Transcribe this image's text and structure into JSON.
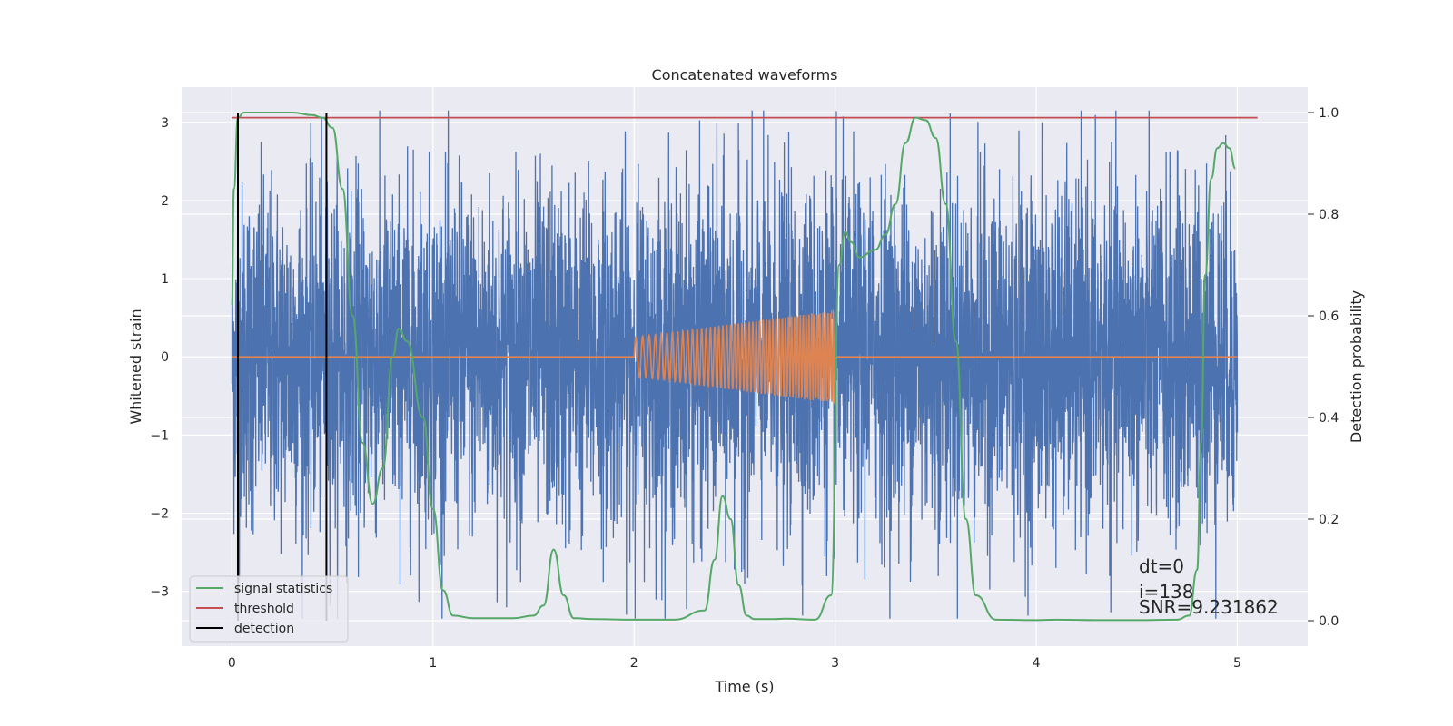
{
  "chart_data": {
    "type": "line",
    "title": "Concatenated waveforms",
    "xlabel": "Time (s)",
    "ylabel": "Whitened strain",
    "y2label": "Detection probability",
    "xlim": [
      -0.25,
      5.35
    ],
    "ylim": [
      -3.7,
      3.45
    ],
    "y2lim": [
      -0.05,
      1.05
    ],
    "xticks": [
      0,
      1,
      2,
      3,
      4,
      5
    ],
    "xtick_labels": [
      "0",
      "1",
      "2",
      "3",
      "4",
      "5"
    ],
    "yticks": [
      -3,
      -2,
      -1,
      0,
      1,
      2,
      3
    ],
    "ytick_labels": [
      "−3",
      "−2",
      "−1",
      "0",
      "1",
      "2",
      "3"
    ],
    "y2ticks": [
      0.0,
      0.2,
      0.4,
      0.6,
      0.8,
      1.0
    ],
    "y2tick_labels": [
      "0.0",
      "0.2",
      "0.4",
      "0.6",
      "0.8",
      "1.0"
    ],
    "grid": true,
    "legend_position": "lower-left",
    "legend": [
      {
        "label": "signal statistics",
        "color": "#55a868"
      },
      {
        "label": "threshold",
        "color": "#c44e52"
      },
      {
        "label": "detection",
        "color": "#000000"
      }
    ],
    "annotation_lines": [
      "dt=0",
      "i=138",
      "SNR=9.231862"
    ],
    "series": [
      {
        "role": "strain noise",
        "color": "#4c72b0",
        "axis": "left",
        "x_range": [
          0,
          5
        ],
        "envelope_typical": 2.0,
        "envelope_peak": 3.15,
        "min_visible": -3.35
      },
      {
        "role": "injected chirp",
        "color": "#dd8452",
        "axis": "left",
        "x_range": [
          0,
          5
        ],
        "chirp_start": 2.0,
        "chirp_end": 3.0,
        "amplitude_start": 0.25,
        "amplitude_end": 0.6
      },
      {
        "name": "signal statistics",
        "color": "#55a868",
        "axis": "right",
        "x": [
          0.0,
          0.01,
          0.03,
          0.06,
          0.1,
          0.2,
          0.3,
          0.4,
          0.45,
          0.5,
          0.55,
          0.6,
          0.65,
          0.7,
          0.75,
          0.8,
          0.83,
          0.87,
          0.95,
          1.0,
          1.05,
          1.1,
          1.2,
          1.4,
          1.5,
          1.55,
          1.6,
          1.65,
          1.7,
          1.8,
          2.0,
          2.2,
          2.35,
          2.4,
          2.44,
          2.48,
          2.52,
          2.56,
          2.6,
          2.7,
          2.75,
          2.9,
          2.98,
          3.02,
          3.05,
          3.08,
          3.12,
          3.2,
          3.25,
          3.3,
          3.35,
          3.4,
          3.45,
          3.5,
          3.55,
          3.6,
          3.65,
          3.7,
          3.8,
          4.0,
          4.1,
          4.3,
          4.5,
          4.7,
          4.76,
          4.8,
          4.82,
          4.84,
          4.87,
          4.9,
          4.93,
          4.96,
          4.99
        ],
        "y": [
          0.62,
          0.85,
          0.99,
          1.0,
          1.0,
          1.0,
          1.0,
          0.995,
          0.99,
          0.97,
          0.85,
          0.6,
          0.35,
          0.23,
          0.3,
          0.52,
          0.575,
          0.55,
          0.4,
          0.22,
          0.06,
          0.01,
          0.005,
          0.005,
          0.01,
          0.03,
          0.14,
          0.05,
          0.005,
          0.003,
          0.002,
          0.002,
          0.02,
          0.12,
          0.245,
          0.2,
          0.07,
          0.01,
          0.003,
          0.003,
          0.004,
          0.002,
          0.05,
          0.7,
          0.765,
          0.745,
          0.715,
          0.73,
          0.76,
          0.82,
          0.94,
          0.99,
          0.985,
          0.95,
          0.82,
          0.55,
          0.2,
          0.05,
          0.002,
          0.001,
          0.002,
          0.001,
          0.001,
          0.002,
          0.01,
          0.1,
          0.35,
          0.68,
          0.87,
          0.93,
          0.94,
          0.93,
          0.89
        ]
      },
      {
        "name": "threshold",
        "color": "#c44e52",
        "axis": "right",
        "x": [
          0.0,
          5.1
        ],
        "y": [
          0.99,
          0.99
        ]
      },
      {
        "name": "detection",
        "color": "#000000",
        "axis": "right",
        "type": "vlines",
        "x": [
          0.03,
          0.47
        ],
        "y": [
          0.0,
          1.0
        ]
      }
    ]
  }
}
